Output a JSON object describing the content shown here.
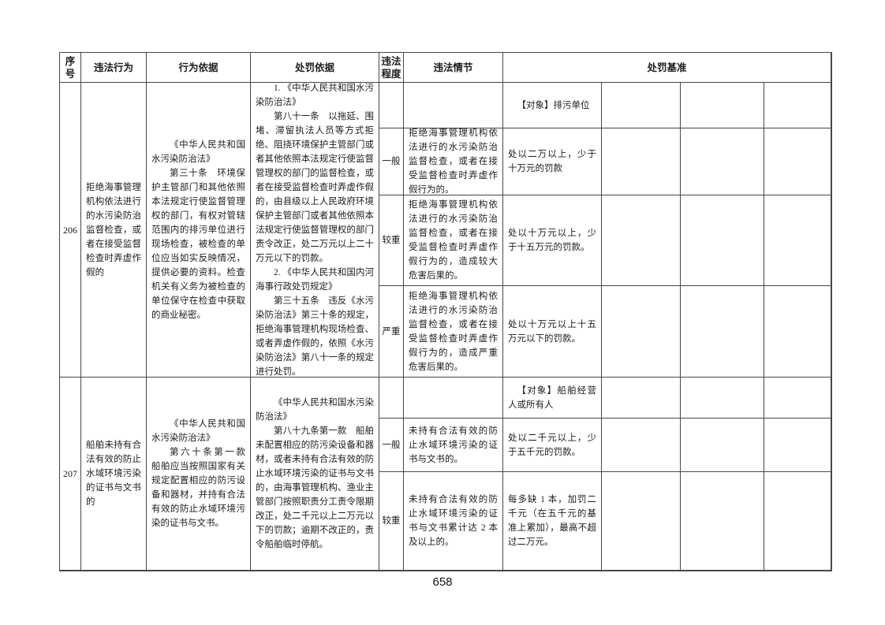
{
  "page_number": "658",
  "table": {
    "header": {
      "serial": "序号",
      "behavior": "违法行为",
      "behavior_basis": "行为依据",
      "penalty_basis": "处罚依据",
      "degree": "违法程度",
      "circumstance": "违法情节",
      "standard": "处罚基准"
    },
    "rows": [
      {
        "serial": "206",
        "behavior": "拒绝海事管理机构依法进行的水污染防治监督检查，或者在接受监督检查时弄虚作假的",
        "behavior_basis": [
          "《中华人民共和国水污染防治法》",
          "第三十条　环境保护主管部门和其他依照本法规定行使监督管理权的部门，有权对管辖范围内的排污单位进行现场检查，被检查的单位应当如实反映情况，提供必要的资料。检查机关有义务为被检查的单位保守在检查中获取的商业秘密。"
        ],
        "penalty_basis": [
          "1. 《中华人民共和国水污染防治法》",
          "第八十一条　以拖延、围堵、滞留执法人员等方式拒绝、阻挠环境保护主管部门或者其他依照本法规定行使监督管理权的部门的监督检查，或者在接受监督检查时弄虚作假的，由县级以上人民政府环境保护主管部门或者其他依照本法规定行使监督管理权的部门责令改正，处二万元以上二十万元以下的罚款。",
          "2. 《中华人民共和国内河海事行政处罚规定》",
          "第三十五条　违反《水污染防治法》第三十条的规定，拒绝海事管理机构现场检查、或者弄虚作假的，依照《水污染防治法》第八十一条的规定进行处罚。"
        ],
        "target": "【对象】排污单位",
        "situations": [
          {
            "degree": "一般",
            "circumstance": "拒绝海事管理机构依法进行的水污染防治监督检查，或者在接受监督检查时弄虚作假行为的。",
            "standard": "处以二万以上，少于十万元的罚款"
          },
          {
            "degree": "较重",
            "circumstance": "拒绝海事管理机构依法进行的水污染防治监督检查，或者在接受监督检查时弄虚作假行为的，造成较大危害后果的。",
            "standard": "处以十万元以上，少于十五万元的罚款。"
          },
          {
            "degree": "严重",
            "circumstance": "拒绝海事管理机构依法进行的水污染防治监督检查，或者在接受监督检查时弄虚作假行为的，造成严重危害后果的。",
            "standard": "处以十万元以上十五万元以下的罚款。"
          }
        ]
      },
      {
        "serial": "207",
        "behavior": "船舶未持有合法有效的防止水域环境污染的证书与文书的",
        "behavior_basis": [
          "《中华人民共和国水污染防治法》",
          "第六十条第一款　船舶应当按照国家有关规定配置相应的防污设备和器材，并持有合法有效的防止水域环境污染的证书与文书。"
        ],
        "penalty_basis": [
          "《中华人民共和国水污染防治法》",
          "第八十九条第一款　船舶未配置相应的防污染设备和器材，或者未持有合法有效的防止水域环境污染的证书与文书的，由海事管理机构、渔业主管部门按照职责分工责令限期改正，处二千元以上二万元以下的罚款；逾期不改正的，责令船舶临时停航。"
        ],
        "target": "【对象】船舶经营人或所有人",
        "situations": [
          {
            "degree": "一般",
            "circumstance": "未持有合法有效的防止水域环境污染的证书与文书的。",
            "standard": "处以二千元以上，少于五千元的罚款。"
          },
          {
            "degree": "较重",
            "circumstance": "未持有合法有效的防止水域环境污染的证书与文书累计达 2 本及以上的。",
            "standard": "每多缺 1 本，加罚二千元（在五千元的基准上累加），最高不超过二万元。"
          }
        ]
      }
    ]
  }
}
